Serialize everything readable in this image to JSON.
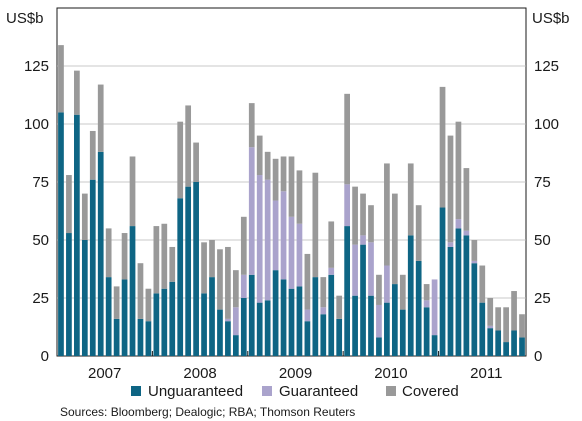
{
  "chart_data": {
    "type": "bar",
    "stacked": true,
    "unit_left": "US$b",
    "unit_right": "US$b",
    "ylim": [
      0,
      150
    ],
    "y_ticks": [
      0,
      25,
      50,
      75,
      100,
      125
    ],
    "year_labels": [
      "2007",
      "2008",
      "2009",
      "2010",
      "2011"
    ],
    "grid": true,
    "legend_position": "bottom",
    "source": "Sources: Bloomberg; Dealogic; RBA; Thomson Reuters",
    "colors": {
      "Unguaranteed": "#0e6584",
      "Guaranteed": "#aaa3cc",
      "Covered": "#999999",
      "grid": "#b9b9b9",
      "axis": "#1a1a1a"
    },
    "series": [
      {
        "name": "Unguaranteed",
        "values": [
          105,
          53,
          104,
          50,
          76,
          88,
          34,
          16,
          33,
          56,
          16,
          15,
          27,
          29,
          32,
          68,
          73,
          75,
          27,
          34,
          20,
          15,
          9,
          25,
          35,
          23,
          24,
          37,
          33,
          29,
          30,
          15,
          34,
          18,
          35,
          16,
          56,
          26,
          48,
          26,
          8,
          23,
          31,
          20,
          52,
          41,
          21,
          9,
          64,
          47,
          55,
          52,
          40,
          23,
          12,
          11,
          6,
          11,
          8
        ]
      },
      {
        "name": "Guaranteed",
        "values": [
          0,
          0,
          0,
          0,
          0,
          0,
          0,
          0,
          0,
          0,
          0,
          0,
          0,
          0,
          0,
          0,
          0,
          0,
          0,
          0,
          0,
          1,
          12,
          10,
          55,
          55,
          52,
          30,
          38,
          31,
          27,
          5,
          0,
          3,
          3,
          0,
          18,
          22,
          4,
          23,
          14,
          16,
          0,
          0,
          0,
          0,
          3,
          24,
          0,
          2,
          4,
          2,
          1,
          0,
          1,
          0,
          0,
          0,
          0
        ]
      },
      {
        "name": "Covered",
        "values": [
          29,
          25,
          19,
          20,
          21,
          29,
          21,
          14,
          20,
          30,
          24,
          14,
          29,
          28,
          15,
          33,
          35,
          17,
          22,
          16,
          26,
          31,
          16,
          25,
          19,
          17,
          12,
          18,
          15,
          26,
          23,
          24,
          45,
          13,
          20,
          10,
          39,
          25,
          18,
          16,
          13,
          44,
          39,
          15,
          31,
          24,
          7,
          0,
          52,
          46,
          42,
          27,
          9,
          16,
          12,
          10,
          15,
          17,
          10
        ]
      }
    ]
  }
}
